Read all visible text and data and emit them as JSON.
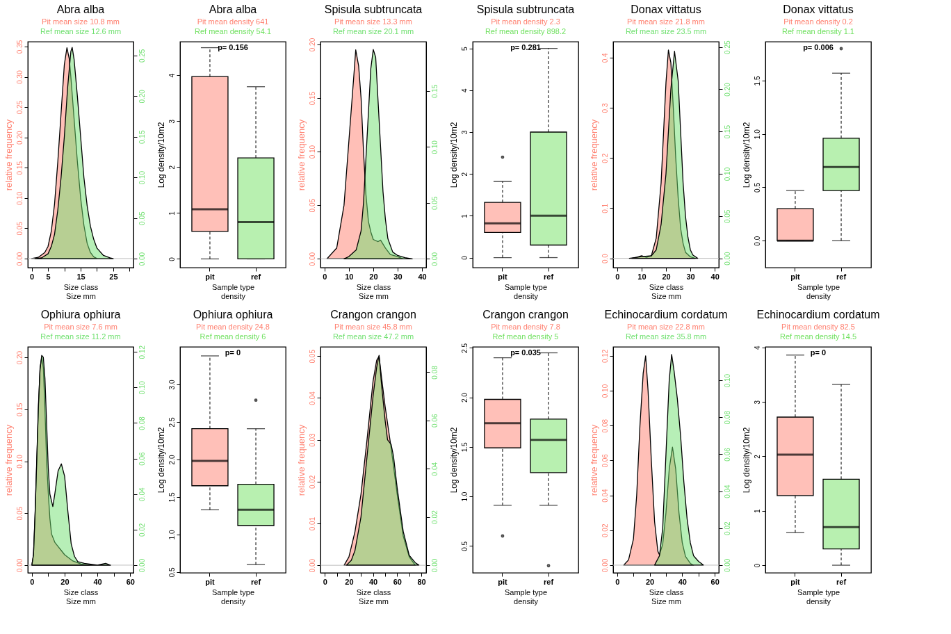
{
  "chart_data": [
    {
      "type": "area",
      "title": "Abra alba",
      "annotations": [
        "Pit  mean size 10.8 mm",
        "Ref  mean size 12.6 mm"
      ],
      "xlabel": "Size class\nSize mm",
      "ylabel": "relative frequency",
      "xlim": [
        -1.2,
        31.2
      ],
      "xticks": [
        0,
        5,
        {
          "value": 10,
          "label": null
        },
        15,
        {
          "value": 20,
          "label": null
        },
        25,
        {
          "value": 30,
          "label": null
        }
      ],
      "ylim": [
        -0.015,
        0.358
      ],
      "yticks": [
        {
          "value": 0,
          "label": "0.00"
        },
        0.05,
        {
          "value": 0.1,
          "label": "0.10"
        },
        0.15,
        {
          "value": 0.2,
          "label": "0.20"
        },
        0.25,
        {
          "value": 0.3,
          "label": "0.30"
        },
        0.35
      ],
      "y2lim": [
        -0.011,
        0.267
      ],
      "y2ticks": [
        {
          "value": 0,
          "label": "0.00"
        },
        0.05,
        {
          "value": 0.1,
          "label": "0.10"
        },
        0.15,
        {
          "value": 0.2,
          "label": "0.20"
        },
        0.25
      ],
      "ref_lines": [
        {
          "axis": "y",
          "value": 0,
          "color": "#bebebe"
        }
      ],
      "series": [
        {
          "color": "#ff8070",
          "axis": "y",
          "x": [
            0,
            2,
            4,
            5,
            6,
            7,
            8,
            9,
            10,
            10.8,
            11.5,
            12,
            13,
            14,
            15,
            16,
            17,
            18,
            19,
            20
          ],
          "values": [
            0,
            0.002,
            0.01,
            0.02,
            0.045,
            0.09,
            0.16,
            0.24,
            0.32,
            0.348,
            0.33,
            0.3,
            0.23,
            0.16,
            0.1,
            0.055,
            0.025,
            0.01,
            0.003,
            0
          ]
        },
        {
          "color": "#70e070",
          "axis": "y2",
          "x": [
            1,
            3,
            5,
            6,
            7,
            8,
            9,
            10,
            11,
            12,
            12.4,
            13,
            14,
            15,
            16,
            17,
            18,
            19,
            20,
            22,
            24,
            25
          ],
          "values": [
            0,
            0.001,
            0.006,
            0.015,
            0.03,
            0.06,
            0.1,
            0.15,
            0.21,
            0.255,
            0.26,
            0.245,
            0.2,
            0.15,
            0.1,
            0.065,
            0.04,
            0.024,
            0.013,
            0.004,
            0.001,
            0
          ]
        }
      ]
    },
    {
      "type": "box",
      "title": "Abra alba",
      "annotations": [
        "Pit  mean density 641",
        "Ref  mean density 54.1",
        "p= 0.156"
      ],
      "categories": [
        "pit",
        "ref"
      ],
      "colors": [
        "#ffc0b8",
        "#b8f0b0"
      ],
      "xlabel": "Sample type\ndensity",
      "ylabel": "Log density/10m2",
      "ylim": [
        -0.19,
        4.73
      ],
      "yticks": [
        0,
        1,
        2,
        3,
        4
      ],
      "boxes": [
        {
          "low": 0,
          "q1": 0.6,
          "median": 1.08,
          "q3": 3.97,
          "high": 4.6
        },
        {
          "low": 0,
          "q1": 0,
          "median": 0.8,
          "q3": 2.2,
          "high": 3.75
        }
      ]
    },
    {
      "type": "area",
      "title": "Spisula subtruncata",
      "annotations": [
        "Pit  mean size 13.3 mm",
        "Ref  mean size 20.1 mm"
      ],
      "xlabel": "Size class\nSize mm",
      "ylabel": "relative frequency",
      "xlim": [
        -1.66,
        41.7
      ],
      "xticks": [
        0,
        10,
        20,
        30,
        40
      ],
      "ylim": [
        -0.0083,
        0.2026
      ],
      "yticks": [
        {
          "value": 0,
          "label": "0.00"
        },
        0.05,
        {
          "value": 0.1,
          "label": "0.10"
        },
        0.15,
        {
          "value": 0.2,
          "label": "0.20"
        }
      ],
      "y2lim": [
        -0.0079,
        0.194
      ],
      "y2ticks": [
        {
          "value": 0,
          "label": "0.00"
        },
        0.05,
        {
          "value": 0.1,
          "label": "0.10"
        },
        0.15
      ],
      "ref_lines": [
        {
          "axis": "y",
          "value": 0,
          "color": "#bebebe"
        }
      ],
      "series": [
        {
          "color": "#ff8070",
          "axis": "y",
          "x": [
            1,
            5,
            8,
            10,
            12,
            12.8,
            14,
            15,
            16,
            17,
            18,
            19,
            20,
            22,
            23,
            25,
            27,
            30,
            32
          ],
          "values": [
            0,
            0.01,
            0.05,
            0.11,
            0.17,
            0.195,
            0.18,
            0.15,
            0.1,
            0.06,
            0.035,
            0.025,
            0.018,
            0.016,
            0.0174,
            0.01,
            0.004,
            0.002,
            0
          ]
        },
        {
          "color": "#70e070",
          "axis": "y2",
          "x": [
            8,
            10,
            13,
            15,
            16,
            17,
            18,
            19,
            20,
            21,
            22,
            23,
            24,
            25,
            26,
            28,
            30,
            33,
            36
          ],
          "values": [
            0,
            0.002,
            0.008,
            0.025,
            0.05,
            0.09,
            0.13,
            0.17,
            0.187,
            0.18,
            0.14,
            0.1,
            0.06,
            0.035,
            0.018,
            0.006,
            0.003,
            0.001,
            0
          ]
        }
      ]
    },
    {
      "type": "box",
      "title": "Spisula subtruncata",
      "annotations": [
        "Pit  mean density 2.3",
        "Ref  mean density 898.2",
        "p= 0.281"
      ],
      "categories": [
        "pit",
        "ref"
      ],
      "colors": [
        "#ffc0b8",
        "#b8f0b0"
      ],
      "xlabel": "Sample type\ndensity",
      "ylabel": "Log density/10m2",
      "ylim": [
        -0.24,
        5.16
      ],
      "yticks": [
        0,
        1,
        2,
        3,
        4,
        5
      ],
      "boxes": [
        {
          "low": 0,
          "q1": 0.6,
          "median": 0.82,
          "q3": 1.32,
          "high": 1.82,
          "outliers": [
            2.4
          ]
        },
        {
          "low": 0,
          "q1": 0.3,
          "median": 1.0,
          "q3": 3.0,
          "high": 5.0
        }
      ]
    },
    {
      "type": "area",
      "title": "Donax vittatus",
      "annotations": [
        "Pit  mean size 21.8 mm",
        "Ref  mean size 23.5 mm"
      ],
      "xlabel": "Size class\nSize mm",
      "ylabel": "relative frequency",
      "xlim": [
        -1.65,
        41.65
      ],
      "xticks": [
        0,
        10,
        20,
        30,
        40
      ],
      "ylim": [
        -0.0186,
        0.4316
      ],
      "yticks": [
        {
          "value": 0,
          "label": "0.0"
        },
        0.1,
        0.2,
        0.3,
        0.4
      ],
      "y2lim": [
        -0.011,
        0.2563
      ],
      "y2ticks": [
        {
          "value": 0,
          "label": "0.00"
        },
        0.05,
        {
          "value": 0.1,
          "label": "0.10"
        },
        0.15,
        {
          "value": 0.2,
          "label": "0.20"
        },
        0.25
      ],
      "ref_lines": [
        {
          "axis": "y",
          "value": 0,
          "color": "#bebebe"
        }
      ],
      "series": [
        {
          "color": "#ff8070",
          "axis": "y",
          "x": [
            6,
            8,
            10,
            12,
            14,
            16,
            18,
            19,
            20,
            21,
            22,
            23,
            24,
            25,
            26,
            27,
            28,
            30,
            32
          ],
          "values": [
            0,
            0.002,
            0.005,
            0.002,
            0.005,
            0.04,
            0.15,
            0.25,
            0.35,
            0.415,
            0.39,
            0.3,
            0.2,
            0.12,
            0.06,
            0.03,
            0.012,
            0.003,
            0
          ]
        },
        {
          "color": "#70e070",
          "axis": "y2",
          "x": [
            5,
            10,
            14,
            16,
            18,
            20,
            22,
            23.5,
            25,
            26,
            27,
            28,
            29,
            30,
            31,
            33
          ],
          "values": [
            0,
            0.002,
            0.003,
            0.01,
            0.04,
            0.1,
            0.2,
            0.245,
            0.21,
            0.15,
            0.09,
            0.05,
            0.025,
            0.01,
            0.004,
            0
          ]
        }
      ]
    },
    {
      "type": "box",
      "title": "Donax vittatus",
      "annotations": [
        "Pit  mean density 0.2",
        "Ref  mean density 1.1",
        "p= 0.006"
      ],
      "categories": [
        "pit",
        "ref"
      ],
      "colors": [
        "#ffc0b8",
        "#b8f0b0"
      ],
      "xlabel": "Sample type\ndensity",
      "ylabel": "Log density/10m2",
      "ylim": [
        -0.253,
        1.865
      ],
      "yticks": [
        {
          "value": 0,
          "label": "0.0"
        },
        0.5,
        {
          "value": 1,
          "label": "1.0"
        },
        1.5
      ],
      "boxes": [
        {
          "low": 0,
          "q1": 0,
          "median": 0,
          "q3": 0.3,
          "high": 0.47
        },
        {
          "low": 0,
          "q1": 0.47,
          "median": 0.69,
          "q3": 0.96,
          "high": 1.57,
          "outliers": [
            1.8
          ]
        }
      ]
    },
    {
      "type": "area",
      "title": "Ophiura ophiura",
      "annotations": [
        "Pit  mean size 7.6 mm",
        "Ref  mean size 11.2 mm"
      ],
      "xlabel": "Size class\nSize mm",
      "ylabel": "relative frequency",
      "xlim": [
        -2.47,
        62
      ],
      "xticks": [
        0,
        {
          "value": 10,
          "label": null
        },
        20,
        {
          "value": 30,
          "label": null
        },
        40,
        {
          "value": 50,
          "label": null
        },
        60
      ],
      "ylim": [
        -0.0074,
        0.2101
      ],
      "yticks": [
        {
          "value": 0,
          "label": "0.00"
        },
        0.05,
        {
          "value": 0.1,
          "label": "0.10"
        },
        0.15,
        {
          "value": 0.2,
          "label": "0.20"
        }
      ],
      "y2lim": [
        -0.0043,
        0.1228
      ],
      "y2ticks": [
        {
          "value": 0,
          "label": "0.00"
        },
        0.02,
        0.04,
        0.06,
        0.08,
        {
          "value": 0.1,
          "label": "0.10"
        },
        0.12
      ],
      "ref_lines": [
        {
          "axis": "y",
          "value": 0,
          "color": "#bebebe"
        }
      ],
      "series": [
        {
          "color": "#ff8070",
          "axis": "y",
          "x": [
            0,
            1,
            2,
            3,
            4,
            5,
            6,
            7,
            8,
            9,
            10,
            11,
            12,
            14,
            16,
            18,
            20,
            25,
            30,
            35
          ],
          "values": [
            0,
            0.01,
            0.05,
            0.1,
            0.15,
            0.19,
            0.2,
            0.19,
            0.15,
            0.1,
            0.07,
            0.045,
            0.03,
            0.022,
            0.018,
            0.014,
            0.01,
            0.004,
            0.001,
            0
          ]
        },
        {
          "color": "#70e070",
          "axis": "y2",
          "x": [
            0,
            1,
            2,
            3,
            4,
            5,
            6,
            7,
            8,
            9,
            10,
            11,
            12.8,
            14,
            16,
            18,
            20,
            22,
            24,
            26,
            28,
            32,
            40,
            45,
            48
          ],
          "values": [
            0,
            0.006,
            0.03,
            0.06,
            0.09,
            0.11,
            0.118,
            0.117,
            0.105,
            0.08,
            0.055,
            0.04,
            0.033,
            0.04,
            0.053,
            0.057,
            0.05,
            0.03,
            0.012,
            0.005,
            0.002,
            0.001,
            0,
            0.001,
            0
          ]
        }
      ]
    },
    {
      "type": "box",
      "title": "Ophiura ophiura",
      "annotations": [
        "Pit  mean density 24.8",
        "Ref  mean density 6",
        "p= 0"
      ],
      "categories": [
        "pit",
        "ref"
      ],
      "colors": [
        "#ffc0b8",
        "#b8f0b0"
      ],
      "xlabel": "Sample type\ndensity",
      "ylabel": "Log density/10m2",
      "ylim": [
        0.49,
        3.5
      ],
      "yticks": [
        0.5,
        {
          "value": 1,
          "label": "1.0"
        },
        1.5,
        {
          "value": 2,
          "label": "2.0"
        },
        2.5,
        {
          "value": 3,
          "label": "3.0"
        }
      ],
      "boxes": [
        {
          "low": 1.33,
          "q1": 1.65,
          "median": 1.98,
          "q3": 2.41,
          "high": 3.38
        },
        {
          "low": 0.6,
          "q1": 1.12,
          "median": 1.33,
          "q3": 1.67,
          "high": 2.41,
          "outliers": [
            2.79
          ]
        }
      ]
    },
    {
      "type": "area",
      "title": "Crangon crangon",
      "annotations": [
        "Pit  mean size 45.8 mm",
        "Ref  mean size 47.2 mm"
      ],
      "xlabel": "Size class\nSize mm",
      "ylabel": "relative frequency",
      "xlim": [
        -3.57,
        84
      ],
      "xticks": [
        0,
        {
          "value": 10,
          "label": null
        },
        20,
        {
          "value": 30,
          "label": null
        },
        40,
        {
          "value": 50,
          "label": null
        },
        60,
        {
          "value": 70,
          "label": null
        },
        80
      ],
      "ylim": [
        -0.0018,
        0.0522
      ],
      "yticks": [
        {
          "value": 0,
          "label": "0.00"
        },
        0.01,
        0.02,
        0.03,
        0.04,
        0.05
      ],
      "y2lim": [
        -0.0032,
        0.0905
      ],
      "y2ticks": [
        {
          "value": 0,
          "label": "0.00"
        },
        0.02,
        0.04,
        0.06,
        0.08
      ],
      "ref_lines": [
        {
          "axis": "y",
          "value": 0,
          "color": "#bebebe"
        }
      ],
      "series": [
        {
          "color": "#ff8070",
          "axis": "y",
          "x": [
            16,
            20,
            25,
            30,
            35,
            40,
            43,
            45,
            47,
            50,
            55,
            60,
            65,
            70,
            75
          ],
          "values": [
            0,
            0.002,
            0.008,
            0.017,
            0.03,
            0.044,
            0.049,
            0.05,
            0.045,
            0.038,
            0.028,
            0.017,
            0.007,
            0.002,
            0
          ]
        },
        {
          "color": "#70e070",
          "axis": "y2",
          "x": [
            18,
            22,
            25,
            30,
            35,
            40,
            43,
            45,
            47,
            50,
            52,
            55,
            57,
            60,
            65,
            70,
            75,
            78
          ],
          "values": [
            0,
            0.002,
            0.006,
            0.02,
            0.045,
            0.07,
            0.082,
            0.087,
            0.075,
            0.06,
            0.052,
            0.05,
            0.045,
            0.032,
            0.014,
            0.004,
            0.001,
            0
          ]
        }
      ]
    },
    {
      "type": "box",
      "title": "Crangon crangon",
      "annotations": [
        "Pit  mean density 7.8",
        "Ref  mean density 5",
        "p= 0.035"
      ],
      "categories": [
        "pit",
        "ref"
      ],
      "colors": [
        "#ffc0b8",
        "#b8f0b0"
      ],
      "xlabel": "Sample type\ndensity",
      "ylabel": "Log density/10m2",
      "ylim": [
        0.228,
        2.51
      ],
      "yticks": [
        0.5,
        {
          "value": 1,
          "label": "1.0"
        },
        1.5,
        {
          "value": 2,
          "label": "2.0"
        },
        2.5
      ],
      "boxes": [
        {
          "low": 0.91,
          "q1": 1.49,
          "median": 1.74,
          "q3": 1.98,
          "high": 2.4,
          "outliers": [
            0.6
          ]
        },
        {
          "low": 0.91,
          "q1": 1.24,
          "median": 1.57,
          "q3": 1.78,
          "high": 2.45,
          "outliers": [
            0.3
          ]
        }
      ]
    },
    {
      "type": "area",
      "title": "Echinocardium cordatum",
      "annotations": [
        "Pit  mean size 22.8 mm",
        "Ref  mean size 35.8 mm"
      ],
      "xlabel": "Size class\nSize mm",
      "ylabel": "relative frequency",
      "xlim": [
        -2.48,
        62.5
      ],
      "xticks": [
        0,
        {
          "value": 10,
          "label": null
        },
        20,
        {
          "value": 30,
          "label": null
        },
        40,
        {
          "value": 50,
          "label": null
        },
        60
      ],
      "ylim": [
        -0.0044,
        0.1251
      ],
      "yticks": [
        {
          "value": 0,
          "label": "0.00"
        },
        0.02,
        0.04,
        0.06,
        0.08,
        {
          "value": 0.1,
          "label": "0.10"
        },
        0.12
      ],
      "y2lim": [
        -0.0042,
        0.1181
      ],
      "y2ticks": [
        {
          "value": 0,
          "label": "0.00"
        },
        0.02,
        0.04,
        0.06,
        0.08,
        {
          "value": 0.1,
          "label": "0.10"
        }
      ],
      "ref_lines": [
        {
          "axis": "y",
          "value": 0,
          "color": "#bebebe"
        }
      ],
      "series": [
        {
          "color": "#ff8070",
          "axis": "y",
          "x": [
            4,
            7,
            10,
            12,
            14,
            16,
            17.5,
            19,
            21,
            23,
            25,
            26,
            28,
            30,
            32,
            34,
            36,
            38,
            40,
            42,
            45,
            47
          ],
          "values": [
            0,
            0.003,
            0.015,
            0.04,
            0.08,
            0.11,
            0.12,
            0.1,
            0.06,
            0.025,
            0.008,
            0.006,
            0.012,
            0.03,
            0.055,
            0.0677,
            0.055,
            0.03,
            0.013,
            0.005,
            0.001,
            0
          ]
        },
        {
          "color": "#70e070",
          "axis": "y2",
          "x": [
            23,
            26,
            28,
            30,
            32,
            33.5,
            35,
            37,
            39,
            41,
            43,
            45,
            47,
            50,
            53
          ],
          "values": [
            0,
            0.005,
            0.02,
            0.06,
            0.1,
            0.114,
            0.105,
            0.09,
            0.07,
            0.045,
            0.025,
            0.012,
            0.005,
            0.002,
            0
          ]
        }
      ]
    },
    {
      "type": "box",
      "title": "Echinocardium cordatum",
      "annotations": [
        "Pit  mean density 82.5",
        "Ref  mean density 14.5",
        "p= 0"
      ],
      "categories": [
        "pit",
        "ref"
      ],
      "colors": [
        "#ffc0b8",
        "#b8f0b0"
      ],
      "xlabel": "Sample type\ndensity",
      "ylabel": "Log density/10m2",
      "ylim": [
        -0.14,
        4.01
      ],
      "yticks": [
        0,
        1,
        2,
        3,
        4
      ],
      "boxes": [
        {
          "low": 0.6,
          "q1": 1.28,
          "median": 2.03,
          "q3": 2.72,
          "high": 3.86
        },
        {
          "low": 0,
          "q1": 0.3,
          "median": 0.7,
          "q3": 1.58,
          "high": 3.32
        }
      ]
    }
  ]
}
